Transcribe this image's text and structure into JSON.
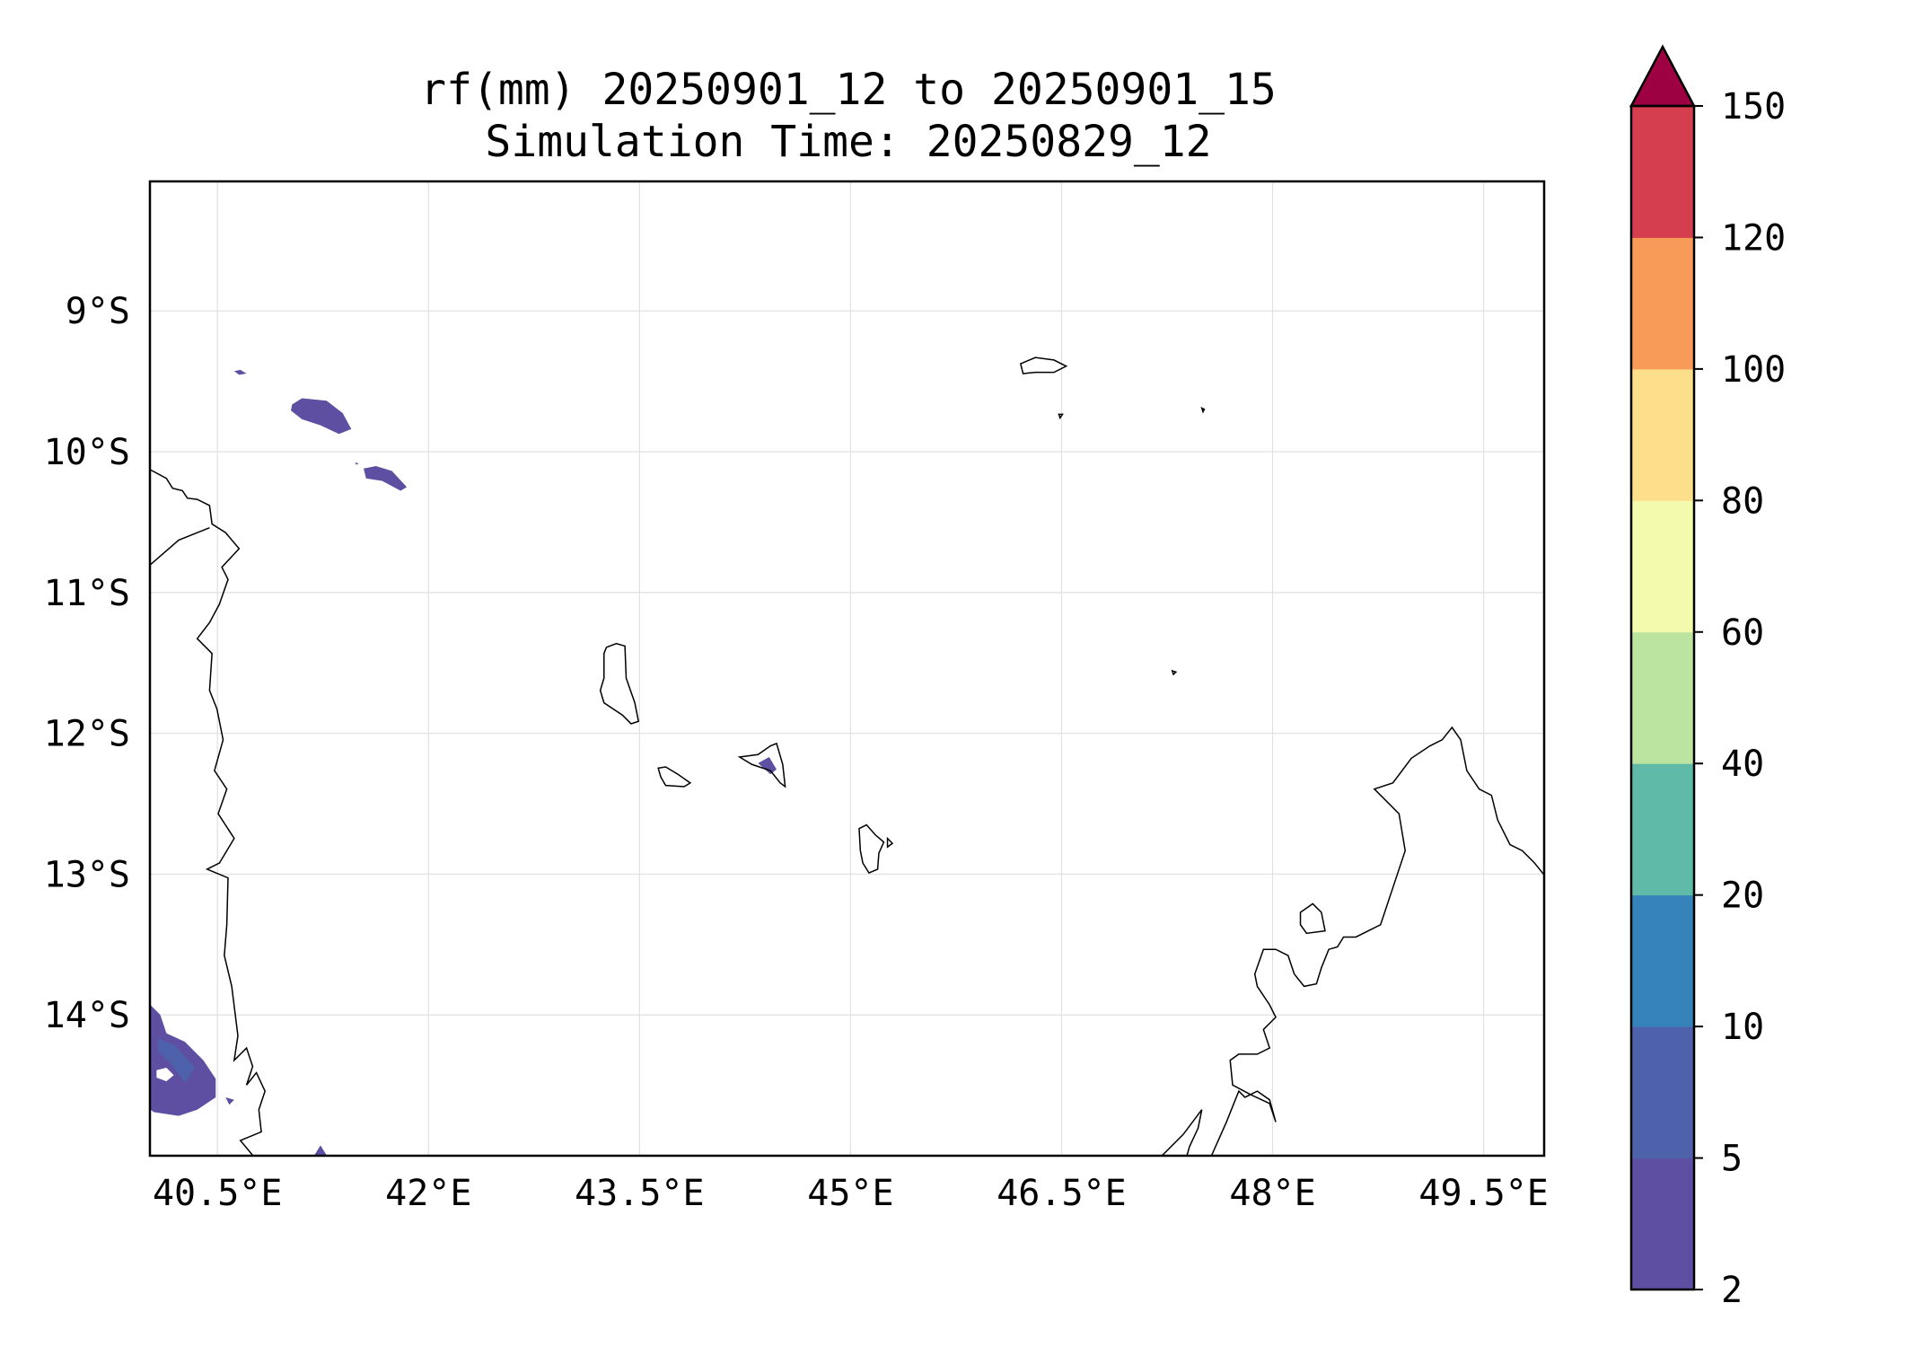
{
  "chart_data": {
    "type": "heatmap",
    "title": "rf(mm) 20250901_12 to 20250901_15",
    "subtitle": "Simulation Time: 20250829_12",
    "xlabel": "",
    "ylabel": "",
    "xlim": [
      40.02,
      49.93
    ],
    "ylim": [
      -15.0,
      -8.08
    ],
    "xticks": [
      40.5,
      42,
      43.5,
      45,
      46.5,
      48,
      49.5
    ],
    "xtick_labels": [
      "40.5°E",
      "42°E",
      "43.5°E",
      "45°E",
      "46.5°E",
      "48°E",
      "49.5°E"
    ],
    "yticks": [
      -9,
      -10,
      -11,
      -12,
      -13,
      -14
    ],
    "ytick_labels": [
      "9°S",
      "10°S",
      "11°S",
      "12°S",
      "13°S",
      "14°S"
    ],
    "grid": true,
    "colorbar": {
      "levels": [
        2,
        5,
        10,
        20,
        40,
        60,
        80,
        100,
        120,
        150
      ],
      "labels": [
        "2",
        "5",
        "10",
        "20",
        "40",
        "60",
        "80",
        "100",
        "120",
        "150"
      ],
      "colors": [
        "#5e4fa2",
        "#4d62aa",
        "#3682ba",
        "#5fbaa8",
        "#bbe4a0",
        "#f3faad",
        "#fddf8b",
        "#f99b58",
        "#d53e4f"
      ],
      "extend_max_color": "#9e0142",
      "placement": "right"
    },
    "rain_areas_note_color": "#5e4fa2"
  }
}
